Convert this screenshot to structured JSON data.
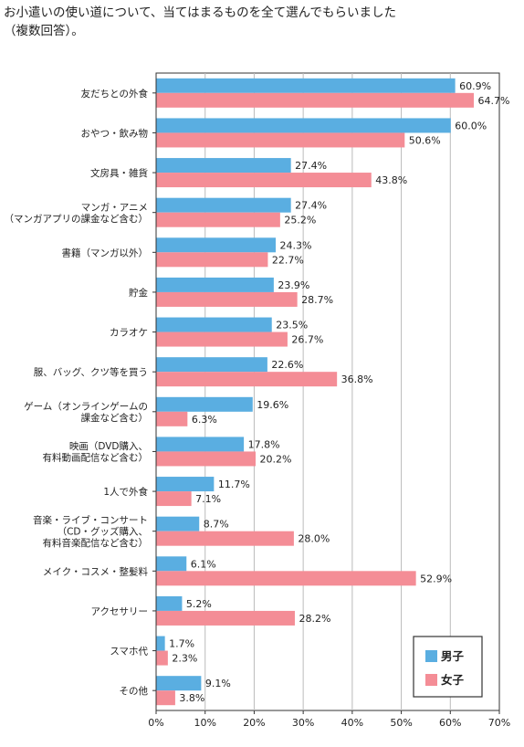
{
  "chart_data": {
    "type": "bar",
    "orientation": "horizontal",
    "title": "お小遣いの使い道について、当てはまるものを全て選んでもらいました\n（複数回答）。",
    "categories": [
      [
        "友だちとの外食"
      ],
      [
        "おやつ・飲み物"
      ],
      [
        "文房具・雑貨"
      ],
      [
        "マンガ・アニメ",
        "（マンガアプリの課金など含む）"
      ],
      [
        "書籍（マンガ以外）"
      ],
      [
        "貯金"
      ],
      [
        "カラオケ"
      ],
      [
        "服、バッグ、クツ等を買う"
      ],
      [
        "ゲーム（オンラインゲームの",
        "課金など含む）"
      ],
      [
        "映画（DVD購入、",
        "有料動画配信など含む）"
      ],
      [
        "1人で外食"
      ],
      [
        "音楽・ライブ・コンサート",
        "（CD・グッズ購入、",
        "有料音楽配信など含む）"
      ],
      [
        "メイク・コスメ・整髪料"
      ],
      [
        "アクセサリー"
      ],
      [
        "スマホ代"
      ],
      [
        "その他"
      ]
    ],
    "series": [
      {
        "name": "男子",
        "color": "#5aaee1",
        "values": [
          60.9,
          60.0,
          27.4,
          27.4,
          24.3,
          23.9,
          23.5,
          22.6,
          19.6,
          17.8,
          11.7,
          8.7,
          6.1,
          5.2,
          1.7,
          9.1
        ],
        "labels": [
          "60.9%",
          "60.0%",
          "27.4%",
          "27.4%",
          "24.3%",
          "23.9%",
          "23.5%",
          "22.6%",
          "19.6%",
          "17.8%",
          "11.7%",
          "8.7%",
          "6.1%",
          "5.2%",
          "1.7%",
          "9.1%"
        ]
      },
      {
        "name": "女子",
        "color": "#f48d96",
        "values": [
          64.7,
          50.6,
          43.8,
          25.2,
          22.7,
          28.7,
          26.7,
          36.8,
          6.3,
          20.2,
          7.1,
          28.0,
          52.9,
          28.2,
          2.3,
          3.8
        ],
        "labels": [
          "64.7%",
          "50.6%",
          "43.8%",
          "25.2%",
          "22.7%",
          "28.7%",
          "26.7%",
          "36.8%",
          "6.3%",
          "20.2%",
          "7.1%",
          "28.0%",
          "52.9%",
          "28.2%",
          "2.3%",
          "3.8%"
        ]
      }
    ],
    "xlim": [
      0,
      70
    ],
    "xticks": [
      "0%",
      "10%",
      "20%",
      "30%",
      "40%",
      "50%",
      "60%",
      "70%"
    ],
    "grid": true,
    "legend_position": "bottom-right"
  }
}
